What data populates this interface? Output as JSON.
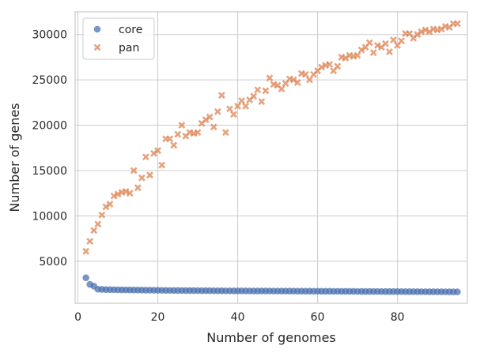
{
  "chart_data": {
    "type": "scatter",
    "title": "",
    "xlabel": "Number of genomes",
    "ylabel": "Number of genes",
    "xlim": [
      -0.7,
      97.5
    ],
    "ylim": [
      370,
      32500
    ],
    "xticks": [
      0,
      20,
      40,
      60,
      80
    ],
    "yticks": [
      5000,
      10000,
      15000,
      20000,
      25000,
      30000
    ],
    "grid": true,
    "legend": {
      "placement": "top-left"
    },
    "series": [
      {
        "name": "core",
        "marker": "circle",
        "color": "#4c72b0",
        "points": [
          [
            2,
            3180
          ],
          [
            3,
            2450
          ],
          [
            4,
            2260
          ],
          [
            5,
            1920
          ],
          [
            6,
            1900
          ],
          [
            7,
            1880
          ],
          [
            8,
            1870
          ],
          [
            9,
            1860
          ],
          [
            10,
            1850
          ],
          [
            11,
            1845
          ],
          [
            12,
            1840
          ],
          [
            13,
            1835
          ],
          [
            14,
            1830
          ],
          [
            15,
            1825
          ],
          [
            16,
            1820
          ],
          [
            17,
            1815
          ],
          [
            18,
            1810
          ],
          [
            19,
            1805
          ],
          [
            20,
            1800
          ],
          [
            21,
            1795
          ],
          [
            22,
            1790
          ],
          [
            23,
            1786
          ],
          [
            24,
            1782
          ],
          [
            25,
            1778
          ],
          [
            26,
            1775
          ],
          [
            27,
            1772
          ],
          [
            28,
            1769
          ],
          [
            29,
            1766
          ],
          [
            30,
            1763
          ],
          [
            31,
            1760
          ],
          [
            32,
            1757
          ],
          [
            33,
            1754
          ],
          [
            34,
            1751
          ],
          [
            35,
            1748
          ],
          [
            36,
            1745
          ],
          [
            37,
            1742
          ],
          [
            38,
            1740
          ],
          [
            39,
            1738
          ],
          [
            40,
            1736
          ],
          [
            41,
            1734
          ],
          [
            42,
            1732
          ],
          [
            43,
            1730
          ],
          [
            44,
            1728
          ],
          [
            45,
            1726
          ],
          [
            46,
            1724
          ],
          [
            47,
            1722
          ],
          [
            48,
            1720
          ],
          [
            49,
            1718
          ],
          [
            50,
            1716
          ],
          [
            51,
            1714
          ],
          [
            52,
            1712
          ],
          [
            53,
            1710
          ],
          [
            54,
            1708
          ],
          [
            55,
            1706
          ],
          [
            56,
            1704
          ],
          [
            57,
            1702
          ],
          [
            58,
            1700
          ],
          [
            59,
            1698
          ],
          [
            60,
            1696
          ],
          [
            61,
            1694
          ],
          [
            62,
            1692
          ],
          [
            63,
            1690
          ],
          [
            64,
            1688
          ],
          [
            65,
            1686
          ],
          [
            66,
            1684
          ],
          [
            67,
            1682
          ],
          [
            68,
            1680
          ],
          [
            69,
            1678
          ],
          [
            70,
            1676
          ],
          [
            71,
            1674
          ],
          [
            72,
            1672
          ],
          [
            73,
            1670
          ],
          [
            74,
            1668
          ],
          [
            75,
            1666
          ],
          [
            76,
            1664
          ],
          [
            77,
            1662
          ],
          [
            78,
            1660
          ],
          [
            79,
            1658
          ],
          [
            80,
            1656
          ],
          [
            81,
            1654
          ],
          [
            82,
            1652
          ],
          [
            83,
            1650
          ],
          [
            84,
            1648
          ],
          [
            85,
            1646
          ],
          [
            86,
            1644
          ],
          [
            87,
            1642
          ],
          [
            88,
            1640
          ],
          [
            89,
            1638
          ],
          [
            90,
            1636
          ],
          [
            91,
            1634
          ],
          [
            92,
            1632
          ],
          [
            93,
            1630
          ],
          [
            94,
            1628
          ],
          [
            95,
            1626
          ]
        ]
      },
      {
        "name": "pan",
        "marker": "x",
        "color": "#dd8452",
        "points": [
          [
            2,
            6100
          ],
          [
            3,
            7200
          ],
          [
            4,
            8400
          ],
          [
            5,
            9100
          ],
          [
            6,
            10100
          ],
          [
            7,
            11000
          ],
          [
            8,
            11300
          ],
          [
            9,
            12200
          ],
          [
            10,
            12400
          ],
          [
            11,
            12600
          ],
          [
            12,
            12700
          ],
          [
            13,
            12500
          ],
          [
            14,
            15000
          ],
          [
            15,
            13100
          ],
          [
            16,
            14200
          ],
          [
            17,
            16500
          ],
          [
            18,
            14500
          ],
          [
            19,
            16900
          ],
          [
            20,
            17200
          ],
          [
            21,
            15600
          ],
          [
            22,
            18500
          ],
          [
            23,
            18500
          ],
          [
            24,
            17800
          ],
          [
            25,
            19000
          ],
          [
            26,
            20000
          ],
          [
            27,
            18800
          ],
          [
            28,
            19200
          ],
          [
            29,
            19100
          ],
          [
            30,
            19200
          ],
          [
            31,
            20200
          ],
          [
            32,
            20600
          ],
          [
            33,
            20900
          ],
          [
            34,
            19800
          ],
          [
            35,
            21500
          ],
          [
            36,
            23300
          ],
          [
            37,
            19200
          ],
          [
            38,
            21800
          ],
          [
            39,
            21200
          ],
          [
            40,
            22100
          ],
          [
            41,
            22700
          ],
          [
            42,
            22100
          ],
          [
            43,
            22800
          ],
          [
            44,
            23200
          ],
          [
            45,
            23900
          ],
          [
            46,
            22600
          ],
          [
            47,
            23800
          ],
          [
            48,
            25200
          ],
          [
            49,
            24500
          ],
          [
            50,
            24400
          ],
          [
            51,
            24000
          ],
          [
            52,
            24600
          ],
          [
            53,
            25100
          ],
          [
            54,
            25000
          ],
          [
            55,
            24700
          ],
          [
            56,
            25700
          ],
          [
            57,
            25600
          ],
          [
            58,
            25000
          ],
          [
            59,
            25600
          ],
          [
            60,
            26000
          ],
          [
            61,
            26400
          ],
          [
            62,
            26600
          ],
          [
            63,
            26700
          ],
          [
            64,
            26000
          ],
          [
            65,
            26500
          ],
          [
            66,
            27500
          ],
          [
            67,
            27400
          ],
          [
            68,
            27700
          ],
          [
            69,
            27600
          ],
          [
            70,
            27700
          ],
          [
            71,
            28300
          ],
          [
            72,
            28600
          ],
          [
            73,
            29100
          ],
          [
            74,
            28000
          ],
          [
            75,
            28800
          ],
          [
            76,
            28600
          ],
          [
            77,
            29000
          ],
          [
            78,
            28100
          ],
          [
            79,
            29400
          ],
          [
            80,
            28800
          ],
          [
            81,
            29300
          ],
          [
            82,
            30100
          ],
          [
            83,
            30100
          ],
          [
            84,
            29600
          ],
          [
            85,
            30000
          ],
          [
            86,
            30300
          ],
          [
            87,
            30500
          ],
          [
            88,
            30300
          ],
          [
            89,
            30600
          ],
          [
            90,
            30500
          ],
          [
            91,
            30600
          ],
          [
            92,
            30900
          ],
          [
            93,
            30800
          ],
          [
            94,
            31200
          ],
          [
            95,
            31200
          ]
        ]
      }
    ]
  }
}
